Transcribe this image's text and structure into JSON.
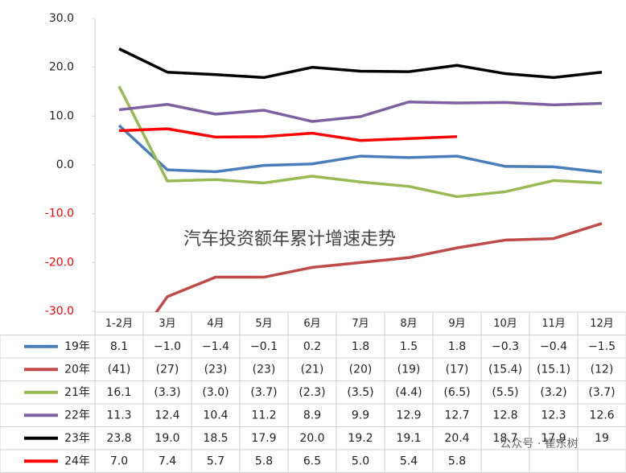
{
  "chart_data": {
    "type": "line",
    "annotation": "汽车投资额年累计增速走势",
    "watermark": "公众号 · 崔东树",
    "categories": [
      "1-2月",
      "3月",
      "4月",
      "5月",
      "6月",
      "7月",
      "8月",
      "9月",
      "10月",
      "11月",
      "12月"
    ],
    "ylim": [
      -30,
      30
    ],
    "yticks": [
      {
        "value": 30,
        "label": "30.0"
      },
      {
        "value": 20,
        "label": "20.0"
      },
      {
        "value": 10,
        "label": "10.0"
      },
      {
        "value": 0,
        "label": "0.0"
      },
      {
        "value": -10,
        "label": "-10.0"
      },
      {
        "value": -20,
        "label": "-20.0"
      },
      {
        "value": -30,
        "label": "-30.0"
      }
    ],
    "negative_tick_color": "#ff0000",
    "grid": false,
    "series": [
      {
        "name": "19年",
        "color": "#4a7ebb",
        "values": [
          8.1,
          -1.0,
          -1.4,
          -0.1,
          0.2,
          1.8,
          1.5,
          1.8,
          -0.3,
          -0.4,
          -1.5
        ],
        "value_labels": [
          "8.1",
          "−1.0",
          "−1.4",
          "−0.1",
          "0.2",
          "1.8",
          "1.5",
          "1.8",
          "−0.3",
          "−0.4",
          "−1.5"
        ]
      },
      {
        "name": "20年",
        "color": "#be4b48",
        "values": [
          -41,
          -27,
          -23,
          -23,
          -21,
          -20,
          -19,
          -17,
          -15.4,
          -15.1,
          -12
        ],
        "value_labels": [
          "(41)",
          "(27)",
          "(23)",
          "(23)",
          "(21)",
          "(20)",
          "(19)",
          "(17)",
          "(15.4)",
          "(15.1)",
          "(12)"
        ]
      },
      {
        "name": "21年",
        "color": "#98b954",
        "values": [
          16.1,
          -3.3,
          -3.0,
          -3.7,
          -2.3,
          -3.5,
          -4.4,
          -6.5,
          -5.5,
          -3.2,
          -3.7
        ],
        "value_labels": [
          "16.1",
          "(3.3)",
          "(3.0)",
          "(3.7)",
          "(2.3)",
          "(3.5)",
          "(4.4)",
          "(6.5)",
          "(5.5)",
          "(3.2)",
          "(3.7)"
        ]
      },
      {
        "name": "22年",
        "color": "#7d60a0",
        "values": [
          11.3,
          12.4,
          10.4,
          11.2,
          8.9,
          9.9,
          12.9,
          12.7,
          12.8,
          12.3,
          12.6
        ],
        "value_labels": [
          "11.3",
          "12.4",
          "10.4",
          "11.2",
          "8.9",
          "9.9",
          "12.9",
          "12.7",
          "12.8",
          "12.3",
          "12.6"
        ]
      },
      {
        "name": "23年",
        "color": "#000000",
        "values": [
          23.8,
          19.0,
          18.5,
          17.9,
          20.0,
          19.2,
          19.1,
          20.4,
          18.7,
          17.9,
          19
        ],
        "value_labels": [
          "23.8",
          "19.0",
          "18.5",
          "17.9",
          "20.0",
          "19.2",
          "19.1",
          "20.4",
          "18.7",
          "17.9",
          "19"
        ]
      },
      {
        "name": "24年",
        "color": "#ff0000",
        "values": [
          7.0,
          7.4,
          5.7,
          5.8,
          6.5,
          5.0,
          5.4,
          5.8,
          null,
          null,
          null
        ],
        "value_labels": [
          "7.0",
          "7.4",
          "5.7",
          "5.8",
          "6.5",
          "5.0",
          "5.4",
          "5.8",
          null,
          null,
          null
        ]
      }
    ]
  }
}
